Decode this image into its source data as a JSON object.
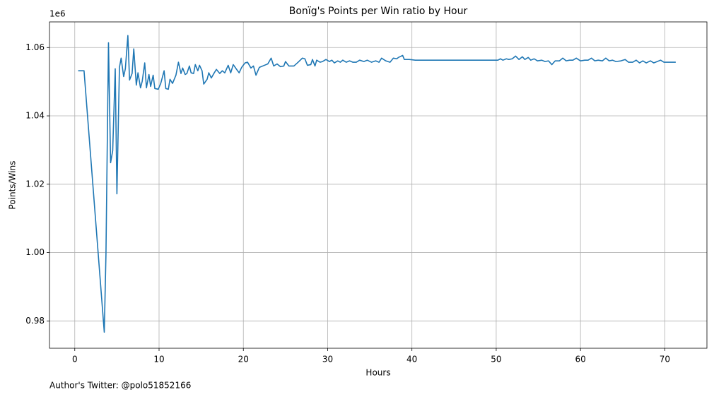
{
  "chart_data": {
    "type": "line",
    "title": "Bonïg's Points per Win ratio by Hour",
    "xlabel": "Hours",
    "ylabel": "Points/Wins",
    "scale_label": "1e6",
    "footnote": "Author's Twitter: @polo51852166",
    "xlim": [
      -3,
      75
    ],
    "ylim": [
      0.972,
      1.0675
    ],
    "xticks": [
      0,
      10,
      20,
      30,
      40,
      50,
      60,
      70
    ],
    "yticks": [
      0.98,
      {
        "value": 1,
        "label": "1.00"
      },
      1.02,
      1.04,
      1.06
    ],
    "grid": true,
    "x": [
      0.4,
      1.1,
      3.5,
      3.7,
      4.0,
      4.25,
      4.5,
      4.8,
      5.0,
      5.3,
      5.5,
      5.8,
      6.0,
      6.3,
      6.5,
      6.8,
      7.0,
      7.3,
      7.5,
      7.8,
      8.0,
      8.3,
      8.5,
      8.8,
      9.0,
      9.3,
      9.5,
      9.9,
      10.2,
      10.6,
      10.8,
      11.1,
      11.3,
      11.6,
      12.0,
      12.3,
      12.6,
      12.8,
      13.1,
      13.3,
      13.6,
      13.8,
      14.1,
      14.3,
      14.6,
      14.8,
      15.1,
      15.3,
      15.7,
      15.9,
      16.2,
      16.5,
      16.8,
      17.2,
      17.5,
      17.8,
      18.2,
      18.5,
      18.8,
      19.2,
      19.5,
      19.8,
      20.2,
      20.5,
      20.9,
      21.2,
      21.5,
      21.9,
      22.5,
      22.9,
      23.3,
      23.6,
      24.0,
      24.4,
      24.8,
      25.0,
      25.4,
      26.0,
      26.5,
      27.0,
      27.3,
      27.6,
      28.0,
      28.2,
      28.5,
      28.7,
      29.1,
      29.4,
      29.8,
      30.2,
      30.5,
      30.8,
      31.2,
      31.5,
      31.8,
      32.2,
      32.6,
      33.0,
      33.4,
      33.8,
      34.3,
      34.7,
      35.2,
      35.7,
      36.1,
      36.4,
      36.9,
      37.4,
      37.8,
      38.2,
      38.4,
      38.9,
      39.1,
      39.7,
      40.4,
      49.7,
      50.2,
      50.5,
      50.8,
      51.2,
      51.5,
      51.9,
      52.3,
      52.7,
      53.1,
      53.4,
      53.8,
      54.1,
      54.5,
      54.9,
      55.4,
      55.8,
      56.2,
      56.6,
      57.0,
      57.5,
      57.9,
      58.3,
      58.7,
      59.1,
      59.5,
      60.0,
      60.5,
      60.9,
      61.3,
      61.7,
      62.1,
      62.6,
      63.0,
      63.4,
      63.8,
      64.2,
      64.8,
      65.3,
      65.7,
      66.2,
      66.6,
      67.0,
      67.4,
      67.8,
      68.3,
      68.7,
      69.1,
      69.5,
      69.9,
      71.3
    ],
    "series": [
      {
        "name": "Points/Wins",
        "color": "#1f77b4",
        "values": [
          1.0532,
          1.0532,
          0.9767,
          0.9994,
          1.0614,
          1.0263,
          1.0298,
          1.0538,
          1.0172,
          1.0542,
          1.0569,
          1.0515,
          1.0538,
          1.0635,
          1.0505,
          1.0524,
          1.0596,
          1.049,
          1.0526,
          1.0482,
          1.0501,
          1.0555,
          1.0482,
          1.0521,
          1.0486,
          1.0519,
          1.048,
          1.0478,
          1.0495,
          1.0532,
          1.048,
          1.0478,
          1.0507,
          1.0495,
          1.0519,
          1.0557,
          1.0524,
          1.054,
          1.0521,
          1.0524,
          1.0546,
          1.0526,
          1.0524,
          1.055,
          1.0532,
          1.0548,
          1.0532,
          1.0493,
          1.0507,
          1.0526,
          1.0511,
          1.0524,
          1.0536,
          1.0524,
          1.0532,
          1.0526,
          1.0548,
          1.0526,
          1.055,
          1.0536,
          1.0526,
          1.0542,
          1.0555,
          1.0557,
          1.054,
          1.0546,
          1.0519,
          1.0542,
          1.0548,
          1.0552,
          1.0569,
          1.0546,
          1.0552,
          1.0544,
          1.0546,
          1.0559,
          1.0546,
          1.0546,
          1.0557,
          1.0569,
          1.0567,
          1.0548,
          1.055,
          1.0565,
          1.0546,
          1.0563,
          1.0557,
          1.0559,
          1.0565,
          1.0559,
          1.0563,
          1.0555,
          1.0561,
          1.0557,
          1.0563,
          1.0557,
          1.0561,
          1.0557,
          1.0557,
          1.0563,
          1.0559,
          1.0563,
          1.0557,
          1.0561,
          1.0557,
          1.0569,
          1.0561,
          1.0557,
          1.0569,
          1.0567,
          1.0571,
          1.0577,
          1.0565,
          1.0565,
          1.0563,
          1.0563,
          1.0563,
          1.0567,
          1.0563,
          1.0567,
          1.0565,
          1.0567,
          1.0575,
          1.0565,
          1.0573,
          1.0565,
          1.0571,
          1.0563,
          1.0567,
          1.0561,
          1.0563,
          1.0559,
          1.0561,
          1.055,
          1.0561,
          1.0561,
          1.0569,
          1.0561,
          1.0563,
          1.0563,
          1.0569,
          1.0561,
          1.0563,
          1.0563,
          1.0569,
          1.0561,
          1.0563,
          1.0561,
          1.0569,
          1.0561,
          1.0563,
          1.0559,
          1.0561,
          1.0565,
          1.0557,
          1.0557,
          1.0563,
          1.0555,
          1.0561,
          1.0555,
          1.0561,
          1.0555,
          1.0559,
          1.0563,
          1.0557,
          1.0557
        ]
      }
    ]
  }
}
